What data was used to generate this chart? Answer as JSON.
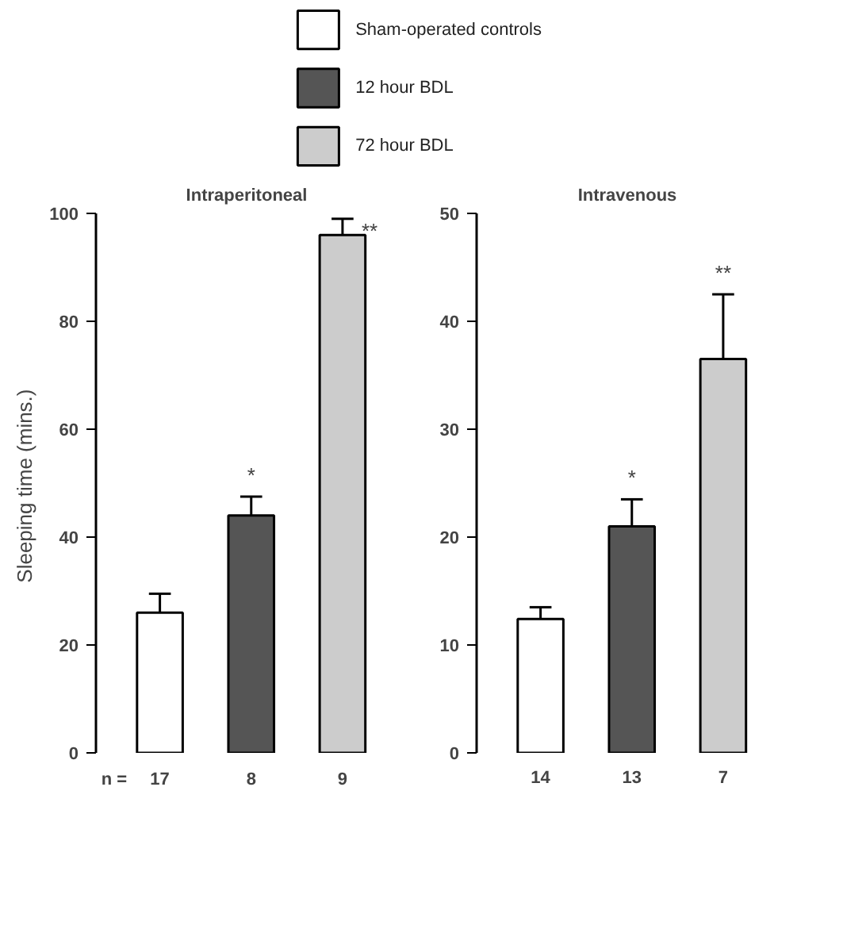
{
  "chart_data": [
    {
      "type": "bar",
      "title": "Intraperitoneal",
      "ylabel": "Sleeping time  (mins.)",
      "categories": [
        "17",
        "8",
        "9"
      ],
      "series": [
        {
          "name": "Sham-operated controls",
          "color": "#ffffff",
          "values": [
            26,
            null,
            null
          ],
          "errors": [
            3.5,
            null,
            null
          ]
        },
        {
          "name": "12 hour  BDL",
          "color": "#555555",
          "values": [
            null,
            44,
            null
          ],
          "errors": [
            null,
            3.5,
            null
          ]
        },
        {
          "name": "72 hour  BDL",
          "color": "#cccccc",
          "values": [
            null,
            null,
            96
          ],
          "errors": [
            null,
            null,
            3
          ]
        }
      ],
      "ylim": [
        0,
        100
      ],
      "yticks": [
        0,
        20,
        40,
        60,
        80,
        100
      ],
      "grid": false,
      "legend": "top",
      "annotations": [
        "n =",
        {
          "text": "*",
          "x": "8",
          "y": 47.5
        },
        {
          "text": "**",
          "x": "9",
          "y": 99
        }
      ]
    },
    {
      "type": "bar",
      "title": "Intravenous",
      "categories": [
        "14",
        "13",
        "7"
      ],
      "series": [
        {
          "color": "#ffffff",
          "values": [
            12.4,
            null,
            null
          ],
          "errors": [
            1.1,
            null,
            null
          ]
        },
        {
          "color": "#555555",
          "values": [
            null,
            21,
            null
          ],
          "errors": [
            null,
            2.5,
            null
          ]
        },
        {
          "color": "#cccccc",
          "values": [
            null,
            null,
            36.5
          ],
          "errors": [
            null,
            null,
            6
          ]
        }
      ],
      "ylim": [
        0,
        50
      ],
      "yticks": [
        0,
        10,
        20,
        30,
        40,
        50
      ],
      "grid": false,
      "annotations": [
        {
          "text": "*",
          "x": "13",
          "y": 23.5
        },
        {
          "text": "**",
          "x": "7",
          "y": 42.5
        }
      ]
    }
  ]
}
